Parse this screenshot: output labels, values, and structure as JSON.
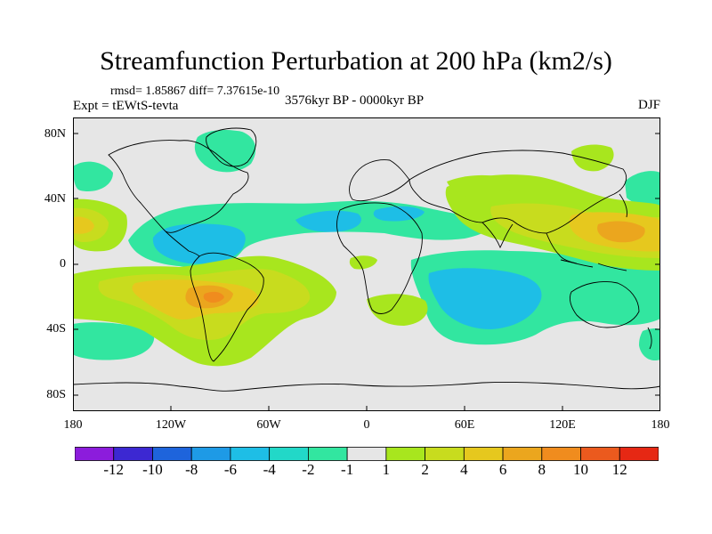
{
  "title": "Streamfunction Perturbation at 200 hPa (km2/s)",
  "stats": "rmsd= 1.85867 diff= 7.37615e-10",
  "experiment": "Expt = tEWtS-tevta",
  "period": "3576kyr BP - 0000kyr BP",
  "season": "DJF",
  "axes": {
    "lat_ticks": [
      "80N",
      "40N",
      "0",
      "40S",
      "80S"
    ],
    "lon_ticks": [
      "180",
      "120W",
      "60W",
      "0",
      "60E",
      "120E",
      "180"
    ]
  },
  "colorbar": {
    "colors": [
      "#8c1cdc",
      "#3c28d2",
      "#1e64dc",
      "#1e9ae6",
      "#1ebee6",
      "#22d8c8",
      "#32e6a0",
      "#e6e6e6",
      "#a8e61e",
      "#c8dc1e",
      "#e6c81e",
      "#eba61e",
      "#f08c1e",
      "#eb5a1e",
      "#e62814"
    ],
    "labels": [
      "-12",
      "-10",
      "-8",
      "-6",
      "-4",
      "-2",
      "-1",
      "1",
      "2",
      "4",
      "6",
      "8",
      "10",
      "12"
    ]
  },
  "field_colors": {
    "background": "#e6e6e6",
    "neg1": "#32e6a0",
    "neg2": "#22d8c8",
    "neg4": "#1ebee6",
    "pos1": "#a8e61e",
    "pos2": "#c8dc1e",
    "pos4": "#e6c81e",
    "pos6": "#eba61e",
    "pos8": "#f08c1e"
  }
}
